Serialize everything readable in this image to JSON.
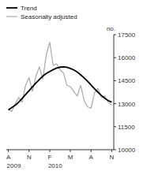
{
  "chart_data": {
    "type": "line",
    "ylabel": "no.",
    "x": [
      0,
      0.5,
      1,
      1.5,
      2,
      2.5,
      3,
      3.5,
      4,
      4.5,
      5,
      5.5,
      6,
      6.5,
      7,
      7.5,
      8,
      8.5,
      9,
      9.5,
      10,
      10.5,
      11,
      11.5,
      12,
      12.5,
      13,
      13.5,
      14,
      14.5,
      15
    ],
    "xlim": [
      -0.3,
      15.3
    ],
    "xticks": [
      {
        "value": 0,
        "label": "A"
      },
      {
        "value": 3,
        "label": "N"
      },
      {
        "value": 6,
        "label": "F"
      },
      {
        "value": 9,
        "label": "M"
      },
      {
        "value": 12,
        "label": "A"
      },
      {
        "value": 15,
        "label": "N"
      }
    ],
    "ylim": [
      10000,
      17500
    ],
    "yticks": [
      10000,
      11500,
      13000,
      14500,
      16000,
      17500
    ],
    "annotations": [
      {
        "text": "2009",
        "x": 0
      },
      {
        "text": "2010",
        "x": 6
      }
    ],
    "series": [
      {
        "name": "Trend",
        "color": "#000000",
        "values": [
          12600,
          12750,
          12900,
          13100,
          13350,
          13600,
          13850,
          14100,
          14350,
          14580,
          14800,
          14970,
          15100,
          15220,
          15320,
          15380,
          15400,
          15370,
          15300,
          15200,
          15060,
          14880,
          14680,
          14460,
          14220,
          13980,
          13750,
          13540,
          13350,
          13200,
          13100
        ]
      },
      {
        "name": "Seasonally adjusted",
        "color": "#aaaaaa",
        "values": [
          12600,
          12500,
          13000,
          13400,
          13100,
          14200,
          14700,
          13800,
          14800,
          15400,
          14600,
          16200,
          17000,
          15500,
          15600,
          15200,
          15000,
          14200,
          14100,
          13800,
          13500,
          14200,
          13200,
          12800,
          12700,
          13700,
          14000,
          13400,
          13500,
          13100,
          12900
        ]
      }
    ],
    "legend": "upper left",
    "grid": false
  }
}
